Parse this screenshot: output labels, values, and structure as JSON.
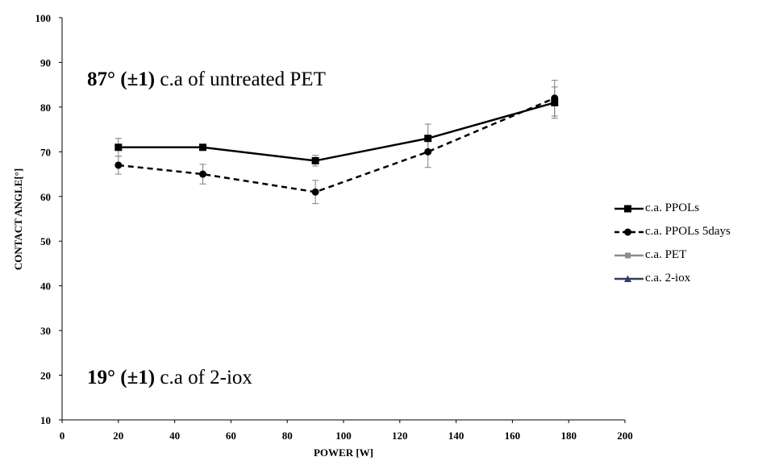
{
  "chart_data": {
    "type": "line",
    "xlabel": "POWER [W]",
    "ylabel": "CONTACT ANGLE[°]",
    "xlim": [
      0,
      200
    ],
    "ylim": [
      10,
      100
    ],
    "xticks": [
      0,
      20,
      40,
      60,
      80,
      100,
      120,
      140,
      160,
      180,
      200
    ],
    "yticks": [
      10,
      20,
      30,
      40,
      50,
      60,
      70,
      80,
      90,
      100
    ],
    "grid": false,
    "legend_position": "right",
    "series": [
      {
        "name": "c.a. PPOLs",
        "x": [
          20,
          50,
          90,
          130,
          175
        ],
        "y": [
          71,
          71,
          68,
          73,
          81
        ],
        "error": [
          2,
          0.5,
          1.2,
          3.2,
          3.5
        ],
        "marker": "square",
        "dash": "solid",
        "color": "#000000"
      },
      {
        "name": "c.a. PPOLs 5days",
        "x": [
          20,
          50,
          90,
          130,
          175
        ],
        "y": [
          67,
          65,
          61,
          70,
          82
        ],
        "error": [
          2,
          2.2,
          2.6,
          3.5,
          4
        ],
        "marker": "circle",
        "dash": "dashed",
        "color": "#000000"
      },
      {
        "name": "c.a. PET",
        "x": [],
        "y": [],
        "marker": "square",
        "dash": "solid",
        "color": "#8c8c8c"
      },
      {
        "name": "c.a. 2-iox",
        "x": [],
        "y": [],
        "marker": "triangle",
        "dash": "solid",
        "color": "#2f3f5f"
      }
    ],
    "annotations": [
      {
        "bold": "87° (±1)",
        "text": " c.a of untreated PET"
      },
      {
        "bold": "19° (±1)",
        "text": " c.a of 2-iox"
      }
    ]
  }
}
